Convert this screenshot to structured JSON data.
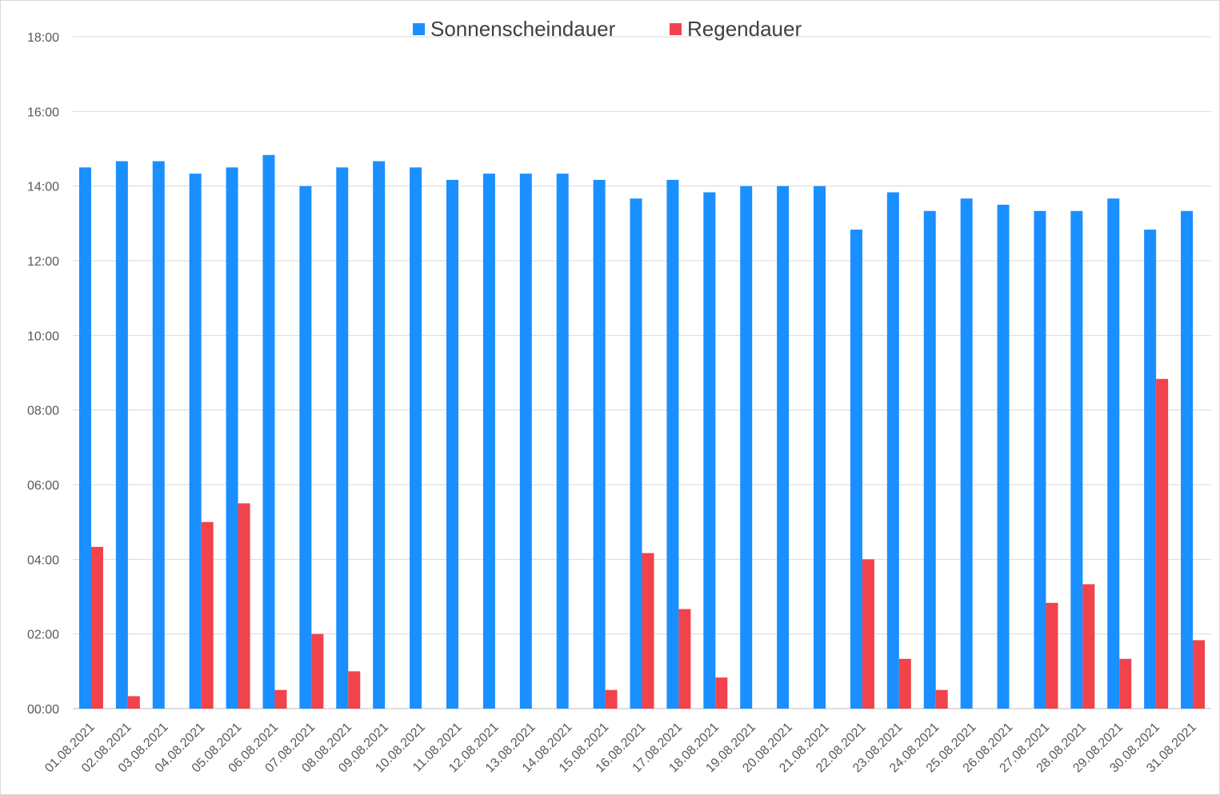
{
  "chart_data": {
    "type": "bar",
    "title": "",
    "xlabel": "",
    "ylabel": "",
    "ylim": [
      "00:00",
      "18:00"
    ],
    "yticks": [
      "00:00",
      "02:00",
      "04:00",
      "06:00",
      "08:00",
      "10:00",
      "12:00",
      "14:00",
      "16:00",
      "18:00"
    ],
    "grid": "horizontal",
    "legend": "top-center",
    "categories": [
      "01.08.2021",
      "02.08.2021",
      "03.08.2021",
      "04.08.2021",
      "05.08.2021",
      "06.08.2021",
      "07.08.2021",
      "08.08.2021",
      "09.08.2021",
      "10.08.2021",
      "11.08.2021",
      "12.08.2021",
      "13.08.2021",
      "14.08.2021",
      "15.08.2021",
      "16.08.2021",
      "17.08.2021",
      "18.08.2021",
      "19.08.2021",
      "20.08.2021",
      "21.08.2021",
      "22.08.2021",
      "23.08.2021",
      "24.08.2021",
      "25.08.2021",
      "26.08.2021",
      "27.08.2021",
      "28.08.2021",
      "29.08.2021",
      "30.08.2021",
      "31.08.2021"
    ],
    "series": [
      {
        "name": "Sonnenscheindauer",
        "color": "#1a8fff",
        "values": [
          "14:30",
          "14:40",
          "14:40",
          "14:20",
          "14:30",
          "14:50",
          "14:00",
          "14:30",
          "14:40",
          "14:30",
          "14:10",
          "14:20",
          "14:20",
          "14:20",
          "14:10",
          "13:40",
          "14:10",
          "13:50",
          "14:00",
          "14:00",
          "14:00",
          "12:50",
          "13:50",
          "13:20",
          "13:40",
          "13:30",
          "13:20",
          "13:20",
          "13:40",
          "12:50",
          "13:20"
        ]
      },
      {
        "name": "Regendauer",
        "color": "#f0434b",
        "values": [
          "04:20",
          "00:20",
          "00:00",
          "05:00",
          "05:30",
          "00:30",
          "02:00",
          "01:00",
          "00:00",
          "00:00",
          "00:00",
          "00:00",
          "00:00",
          "00:00",
          "00:30",
          "04:10",
          "02:40",
          "00:50",
          "00:00",
          "00:00",
          "00:00",
          "04:00",
          "01:20",
          "00:30",
          "00:00",
          "00:00",
          "02:50",
          "03:20",
          "01:20",
          "08:50",
          "01:50"
        ]
      }
    ]
  }
}
